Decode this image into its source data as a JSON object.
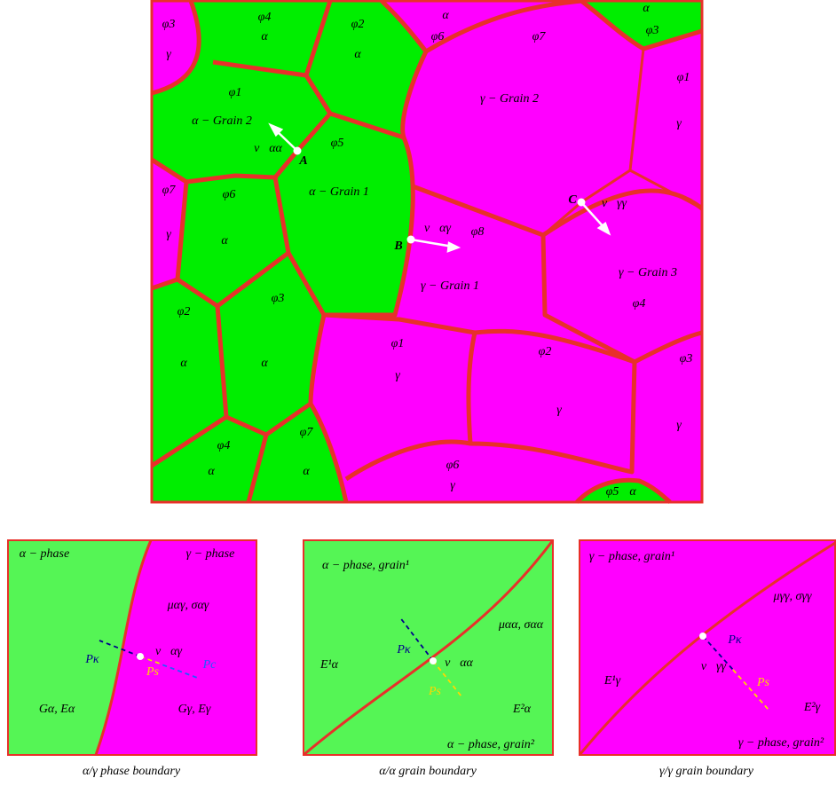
{
  "grain_map": {
    "labels": [
      "φ3",
      "γ",
      "φ4",
      "α",
      "φ2",
      "α",
      "α",
      "φ6",
      "φ7",
      "α",
      "φ3",
      "γ − Grain 2",
      "φ1",
      "α − Grain 2",
      "φ5",
      "v⃗αα",
      "A",
      "α − Grain 1",
      "φ1",
      "γ",
      "φ7",
      "γ",
      "φ6",
      "α",
      "C",
      "v⃗γγ",
      "v⃗αγ",
      "φ8",
      "B",
      "γ − Grain 1",
      "γ − Grain 3",
      "φ4",
      "φ2",
      "α",
      "φ3",
      "α",
      "φ1",
      "γ",
      "φ2",
      "γ",
      "φ3",
      "γ",
      "φ4",
      "α",
      "φ7",
      "α",
      "φ6",
      "γ",
      "φ5",
      "α"
    ]
  },
  "panels": [
    {
      "labels": [
        "α − phase",
        "γ − phase",
        "μαγ, σαγ",
        "v⃗αγ",
        "Pκ",
        "Ps",
        "Pc",
        "Gα, Eα",
        "Gγ, Eγ"
      ],
      "caption": "α/γ phase boundary"
    },
    {
      "labels": [
        "α − phase, grain¹",
        "μαα, σαα",
        "Pκ",
        "v⃗αα",
        "Ps",
        "E¹α",
        "E²α",
        "α − phase, grain²"
      ],
      "caption": "α/α grain boundary"
    },
    {
      "labels": [
        "γ − phase, grain¹",
        "μγγ, σγγ",
        "Pκ",
        "v⃗γγ",
        "Ps",
        "E¹γ",
        "E²γ",
        "γ − phase, grain²"
      ],
      "caption": "γ/γ grain boundary"
    }
  ]
}
